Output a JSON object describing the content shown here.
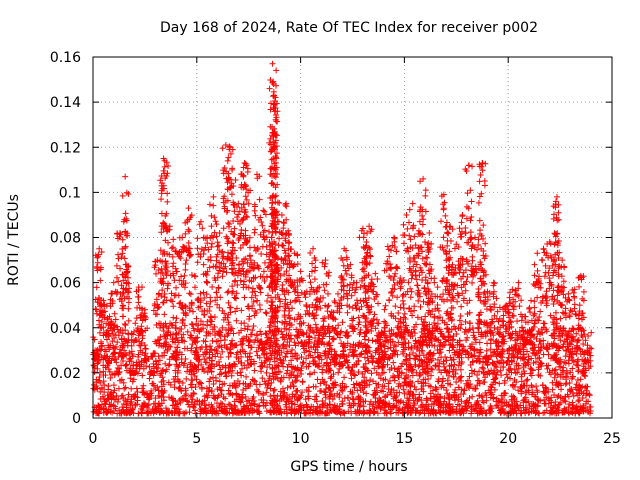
{
  "chart_data": {
    "type": "scatter",
    "title": "Day 168 of 2024, Rate Of TEC Index for receiver p002",
    "xlabel": "GPS time / hours",
    "ylabel": "ROTI / TECUs",
    "xlim": [
      0,
      25
    ],
    "ylim": [
      0,
      0.16
    ],
    "xticks": [
      "0",
      "5",
      "10",
      "15",
      "20",
      "25"
    ],
    "yticks": [
      "0",
      "0.02",
      "0.04",
      "0.06",
      "0.08",
      "0.1",
      "0.12",
      "0.14",
      "0.16"
    ],
    "grid": true,
    "marker": "+",
    "color": "#ff0000",
    "series": [
      {
        "x": [
          0.1,
          0.3,
          0.5,
          0.8,
          1.0,
          1.3,
          1.6,
          1.9,
          2.2,
          2.5,
          2.8,
          3.1,
          3.4,
          3.7,
          4.0,
          4.3,
          4.6,
          4.9,
          5.2,
          5.5,
          5.8,
          6.1,
          6.4,
          6.7,
          7.0,
          7.3,
          7.6,
          7.9,
          8.2,
          8.5,
          8.8,
          9.1,
          9.4,
          9.7,
          10.0,
          10.3,
          10.6,
          10.9,
          11.2,
          11.5,
          11.8,
          12.1,
          12.4,
          12.7,
          13.0,
          13.3,
          13.6,
          13.9,
          14.2,
          14.5,
          14.8,
          15.1,
          15.4,
          15.7,
          16.0,
          16.3,
          16.6,
          16.9,
          17.2,
          17.5,
          17.8,
          18.1,
          18.4,
          18.7,
          19.0,
          19.3,
          19.6,
          19.9,
          20.2,
          20.5,
          20.8,
          21.1,
          21.4,
          21.7,
          22.0,
          22.3,
          22.6,
          22.9,
          23.2,
          23.5,
          23.8,
          1.55,
          3.45,
          6.6,
          7.4,
          8.65,
          8.7,
          8.72,
          8.75,
          15.9,
          18.75,
          22.35,
          9.3,
          13.2,
          16.2,
          17.2
        ],
        "y": [
          0.03,
          0.075,
          0.052,
          0.045,
          0.06,
          0.082,
          0.068,
          0.02,
          0.058,
          0.048,
          0.012,
          0.07,
          0.115,
          0.085,
          0.074,
          0.08,
          0.093,
          0.063,
          0.087,
          0.08,
          0.098,
          0.082,
          0.121,
          0.11,
          0.095,
          0.113,
          0.07,
          0.108,
          0.092,
          0.078,
          0.11,
          0.09,
          0.083,
          0.073,
          0.065,
          0.056,
          0.075,
          0.058,
          0.07,
          0.047,
          0.055,
          0.075,
          0.068,
          0.06,
          0.084,
          0.085,
          0.064,
          0.038,
          0.076,
          0.08,
          0.062,
          0.09,
          0.095,
          0.083,
          0.045,
          0.066,
          0.058,
          0.099,
          0.071,
          0.077,
          0.09,
          0.112,
          0.08,
          0.068,
          0.056,
          0.06,
          0.049,
          0.05,
          0.057,
          0.06,
          0.045,
          0.052,
          0.073,
          0.075,
          0.078,
          0.096,
          0.07,
          0.055,
          0.057,
          0.063,
          0.03,
          0.107,
          0.114,
          0.12,
          0.112,
          0.157,
          0.148,
          0.143,
          0.126,
          0.106,
          0.113,
          0.098,
          0.095,
          0.082,
          0.082,
          0.085
        ],
        "dense_band": {
          "x": [
            0,
            24
          ],
          "y_min": 0.002,
          "y_max": 0.04
        }
      }
    ]
  }
}
